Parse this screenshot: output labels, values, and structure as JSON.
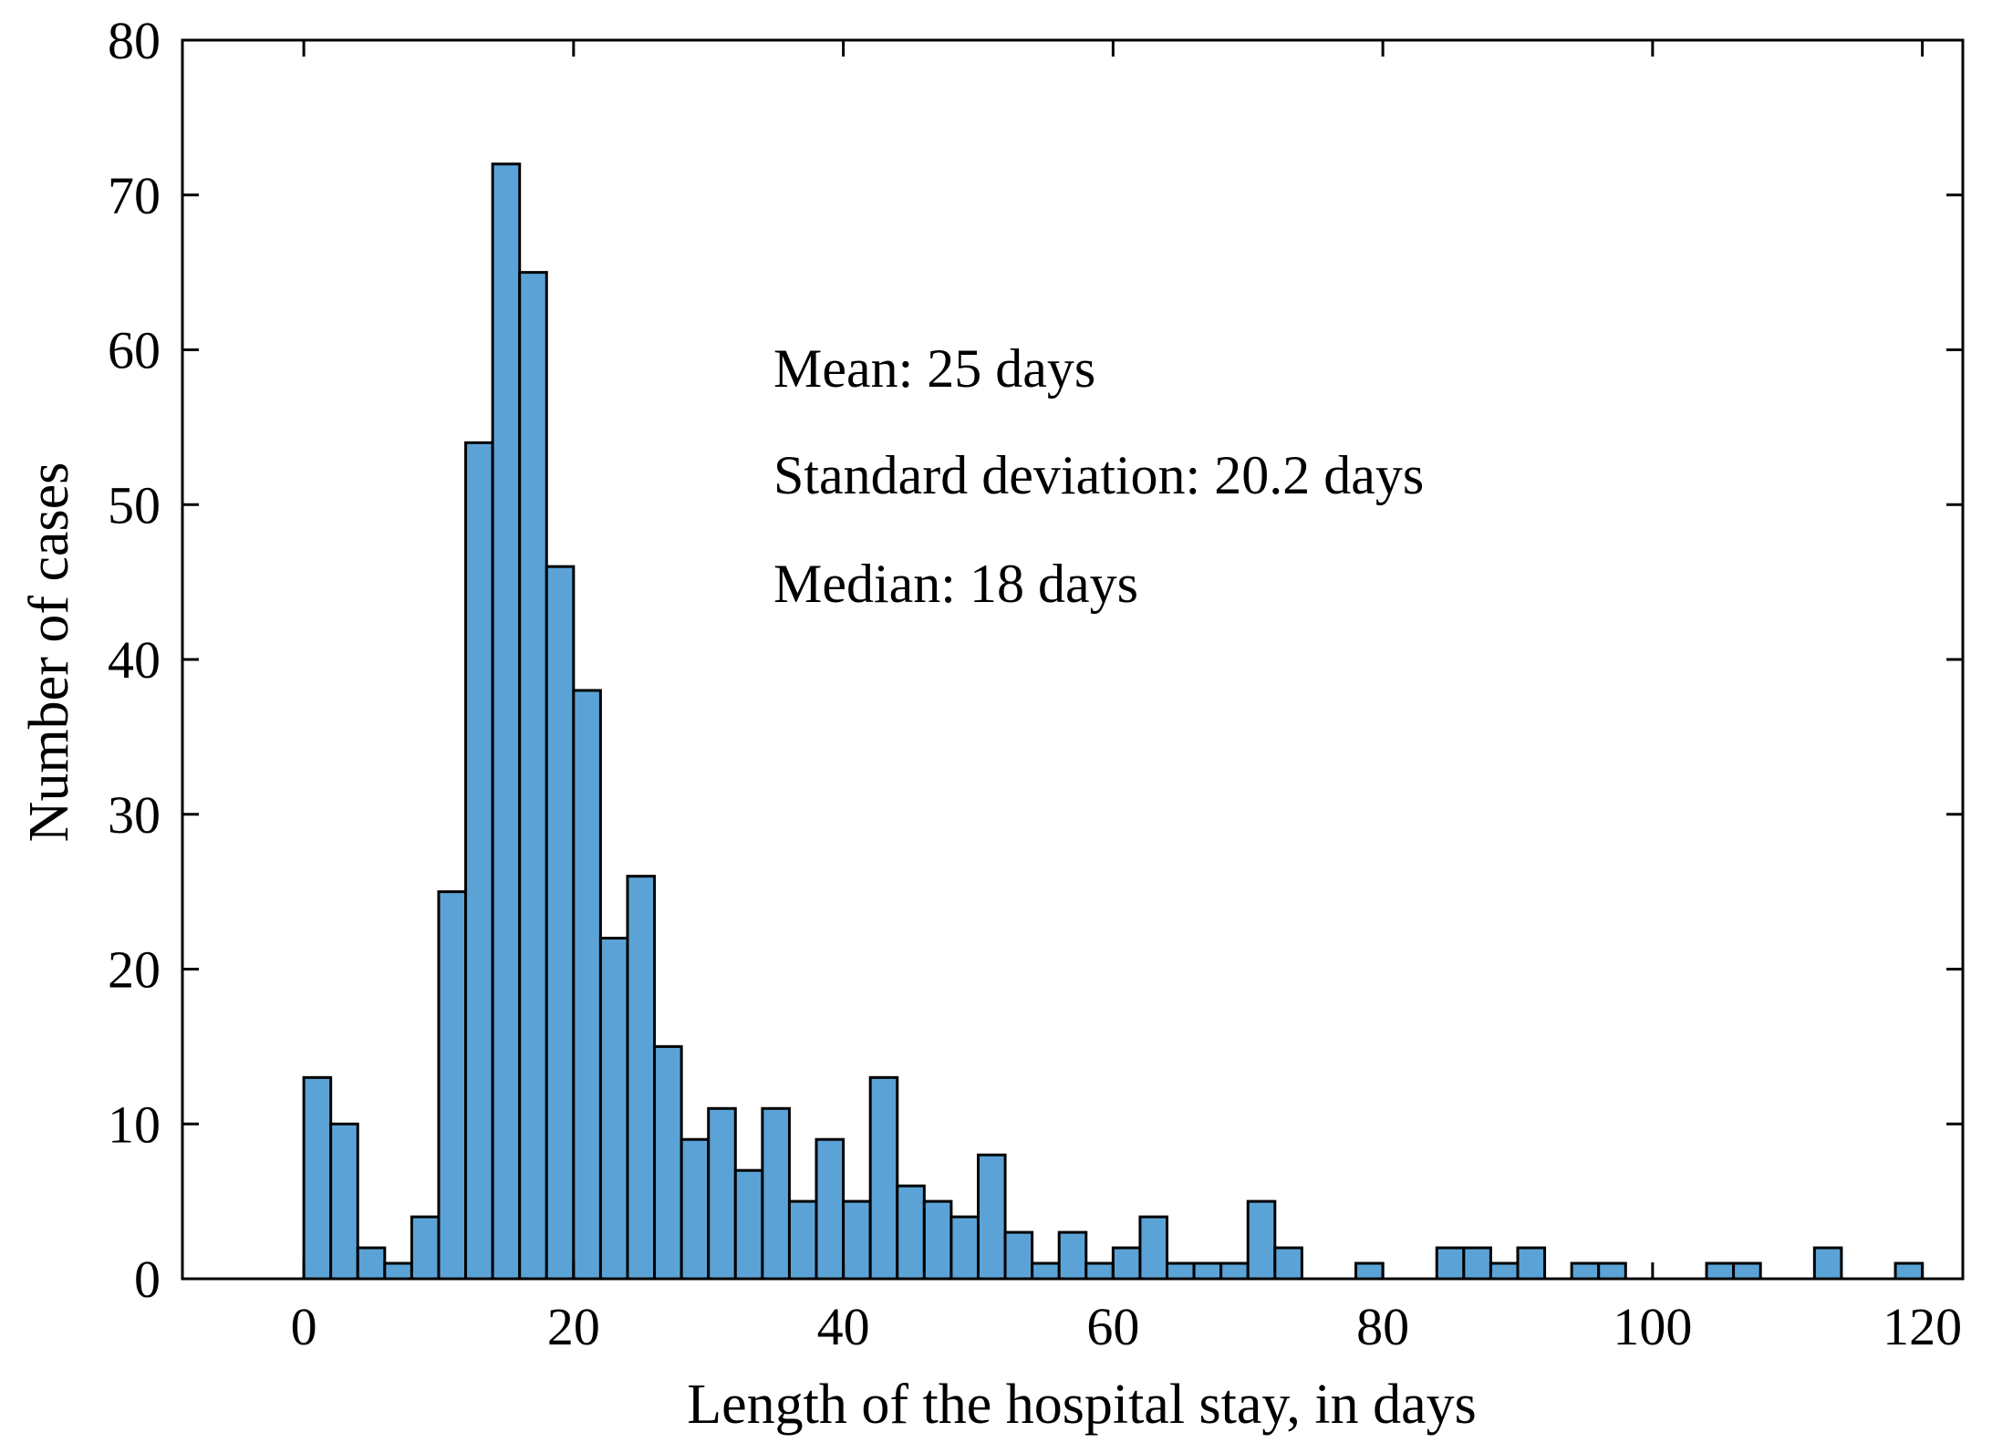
{
  "chart_data": {
    "type": "bar",
    "title": "",
    "xlabel": "Length of the hospital stay, in days",
    "ylabel": "Number of cases",
    "xlim": [
      -9,
      123
    ],
    "ylim": [
      0,
      80
    ],
    "xticks": [
      0,
      20,
      40,
      60,
      80,
      100,
      120
    ],
    "yticks": [
      0,
      10,
      20,
      30,
      40,
      50,
      60,
      70,
      80
    ],
    "bin_width": 2,
    "bin_start": 0,
    "values": [
      13,
      10,
      2,
      1,
      4,
      25,
      54,
      72,
      65,
      46,
      38,
      22,
      26,
      15,
      9,
      11,
      7,
      11,
      5,
      9,
      5,
      13,
      6,
      5,
      4,
      8,
      3,
      1,
      3,
      1,
      2,
      4,
      1,
      1,
      1,
      5,
      2,
      0,
      0,
      1,
      0,
      0,
      2,
      2,
      1,
      2,
      0,
      1,
      1,
      0,
      0,
      0,
      1,
      1,
      0,
      0,
      2,
      0,
      0,
      1
    ],
    "bar_color": "#5BA3D6",
    "edge_color": "#000000",
    "grid": false,
    "annotations": [
      "Mean: 25 days",
      "Standard deviation: 20.2 days",
      "Median: 18 days"
    ]
  }
}
